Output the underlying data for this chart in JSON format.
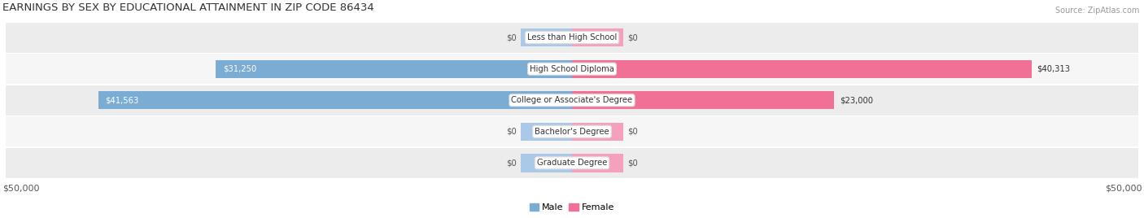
{
  "title": "EARNINGS BY SEX BY EDUCATIONAL ATTAINMENT IN ZIP CODE 86434",
  "source": "Source: ZipAtlas.com",
  "categories": [
    "Less than High School",
    "High School Diploma",
    "College or Associate's Degree",
    "Bachelor's Degree",
    "Graduate Degree"
  ],
  "male_values": [
    0,
    31250,
    41563,
    0,
    0
  ],
  "female_values": [
    0,
    40313,
    23000,
    0,
    0
  ],
  "male_color": "#7badd4",
  "female_color": "#f07096",
  "male_stub_color": "#aac8e8",
  "female_stub_color": "#f5a0bc",
  "max_val": 50000,
  "stub_val": 4500,
  "x_label_left": "$50,000",
  "x_label_right": "$50,000",
  "legend_male": "Male",
  "legend_female": "Female",
  "row_bg_odd": "#ececec",
  "row_bg_even": "#f6f6f6",
  "title_fontsize": 9.5,
  "bar_height": 0.58,
  "row_rounding": 0.3,
  "figsize": [
    14.06,
    2.68
  ],
  "dpi": 100
}
